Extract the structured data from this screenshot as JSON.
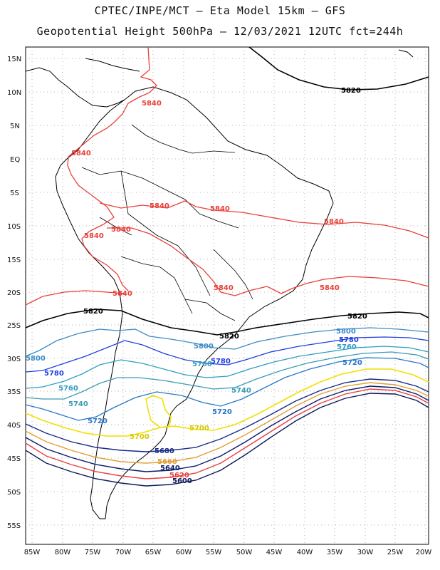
{
  "header": {
    "line1": "CPTEC/INPE/MCT –  Eta Model 15km – GFS",
    "line2": "Geopotential Height 500hPa – 12/03/2021 12UTC fct=244h"
  },
  "axes": {
    "lat_labels": [
      "15N",
      "10N",
      "5N",
      "EQ",
      "5S",
      "10S",
      "15S",
      "20S",
      "25S",
      "30S",
      "35S",
      "40S",
      "45S",
      "50S",
      "55S"
    ],
    "lon_labels": [
      "85W",
      "80W",
      "75W",
      "70W",
      "65W",
      "60W",
      "55W",
      "50W",
      "45W",
      "40W",
      "35W",
      "30W",
      "25W",
      "20W"
    ]
  },
  "colors": {
    "c5840": "#e8403a",
    "c5820": "#000000",
    "c5800": "#3c8cc4",
    "c5780": "#1f3fe0",
    "c5760": "#2e9ec0",
    "c5740": "#3a9bb5",
    "c5720": "#2877c8",
    "c5700": "#f0e000",
    "c5680": "#162a88",
    "c5660": "#e0a030",
    "c5640": "#0a1a6a",
    "c5620": "#e84040",
    "c5600": "#0a1a5a",
    "land": "#000000",
    "grid": "#9a9a9a"
  },
  "contour_labels": {
    "l5840": "5840",
    "l5820": "5820",
    "l5800": "5800",
    "l5780": "5780",
    "l5760": "5760",
    "l5740": "5740",
    "l5720": "5720",
    "l5700": "5700",
    "l5680": "5680",
    "l5660": "5660",
    "l5640": "5640",
    "l5620": "5620",
    "l5600": "5600"
  }
}
